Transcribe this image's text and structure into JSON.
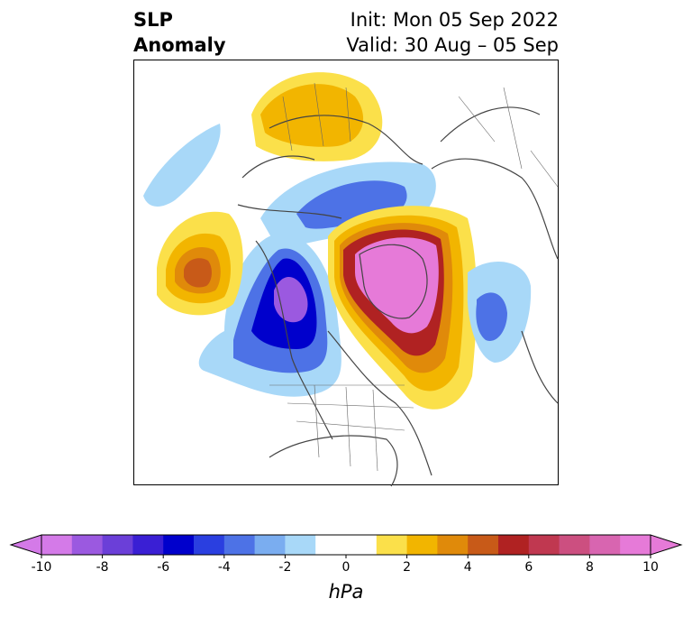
{
  "title": {
    "left_line1": "SLP",
    "left_line2": "Anomaly",
    "right_line1": "Init: Mon 05 Sep 2022",
    "right_line2": "Valid: 30 Aug – 05 Sep"
  },
  "colorbar": {
    "unit": "hPa",
    "range": [
      -10,
      10
    ],
    "step": 1,
    "tick_labels": [
      "-10",
      "-8",
      "-6",
      "-4",
      "-2",
      "0",
      "2",
      "4",
      "6",
      "8",
      "10"
    ],
    "colors": [
      "#d47ae8",
      "#9b59e0",
      "#6b3fd8",
      "#3a1fd4",
      "#0000cc",
      "#2a3fe0",
      "#4d72e6",
      "#7aadf0",
      "#a8d8f8",
      "#ffffff",
      "#ffffff",
      "#fbe04a",
      "#f2b500",
      "#e08a0a",
      "#c85a18",
      "#b02222",
      "#c03850",
      "#cc4f80",
      "#d865b0",
      "#e67ad8"
    ],
    "extend": "both"
  },
  "map": {
    "projection": "polar-stereographic",
    "region": "Northern Hemisphere",
    "colors": {
      "neg_light": "#a8d8f8",
      "neg_mid": "#4d72e6",
      "neg_dark": "#0000cc",
      "neg_core": "#9b59e0",
      "pos_light": "#fbe04a",
      "pos_mid": "#f2b500",
      "pos_orange": "#e08a0a",
      "pos_red": "#b02222",
      "pos_core": "#e67ad8",
      "coast": "#444444"
    }
  }
}
